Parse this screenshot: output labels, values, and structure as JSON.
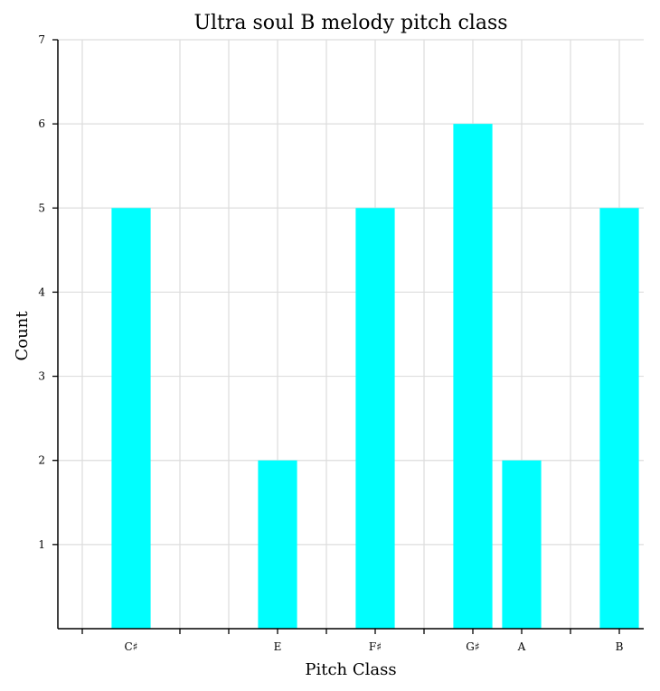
{
  "chart_data": {
    "type": "bar",
    "title": "Ultra soul B melody pitch class",
    "xlabel": "Pitch Class",
    "ylabel": "Count",
    "ylim": [
      0,
      7
    ],
    "yticks": [
      1,
      2,
      3,
      4,
      5,
      6,
      7
    ],
    "xlim": [
      -0.5,
      11.5
    ],
    "xticks": [
      0,
      2,
      4,
      6,
      8,
      10
    ],
    "xminorticks": [
      3,
      5,
      7,
      9,
      11
    ],
    "categories": [
      "C♯",
      "E",
      "F♯",
      "G♯",
      "A",
      "B"
    ],
    "positions": [
      1,
      4,
      6,
      8,
      9,
      11
    ],
    "values": [
      5,
      2,
      5,
      6,
      2,
      5
    ],
    "bar_color": "#00ffff",
    "grid": true
  }
}
